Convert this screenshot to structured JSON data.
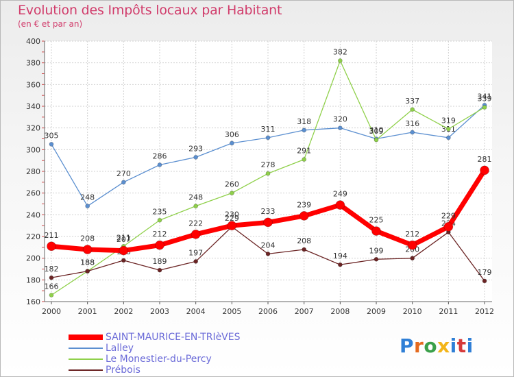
{
  "title": "Evolution des Impôts locaux par Habitant",
  "subtitle": "(en € et par an)",
  "logo_text": "Proxiti",
  "chart_data": {
    "type": "line",
    "x": [
      2000,
      2001,
      2002,
      2003,
      2004,
      2005,
      2006,
      2007,
      2008,
      2009,
      2010,
      2011,
      2012
    ],
    "ylim": [
      160,
      400
    ],
    "yticks": [
      160,
      180,
      200,
      220,
      240,
      260,
      280,
      300,
      320,
      340,
      360,
      380,
      400
    ],
    "grid": true,
    "legend_position": "bottom-left",
    "series": [
      {
        "name": "Lalley",
        "color": "#5b8fd0",
        "values": [
          305,
          248,
          270,
          286,
          293,
          306,
          311,
          318,
          320,
          310,
          316,
          311,
          341
        ]
      },
      {
        "name": "Le Monestier-du-Percy",
        "color": "#8fd04a",
        "values": [
          166,
          188,
          211,
          235,
          248,
          260,
          278,
          291,
          382,
          309,
          337,
          319,
          339
        ]
      },
      {
        "name": "Prébois",
        "color": "#6b2424",
        "values": [
          182,
          188,
          198,
          189,
          197,
          229,
          204,
          208,
          194,
          199,
          200,
          224,
          179
        ]
      },
      {
        "name": "SAINT-MAURICE-EN-TRIèVES",
        "color": "#ff0000",
        "values": [
          211,
          208,
          207,
          212,
          222,
          230,
          233,
          239,
          249,
          225,
          212,
          229,
          281
        ]
      }
    ]
  },
  "legend": [
    {
      "label": "SAINT-MAURICE-EN-TRIèVES",
      "color": "#ff0000"
    },
    {
      "label": "Lalley",
      "color": "#5b8fd0"
    },
    {
      "label": "Le Monestier-du-Percy",
      "color": "#8fd04a"
    },
    {
      "label": "Prébois",
      "color": "#6b2424"
    }
  ]
}
